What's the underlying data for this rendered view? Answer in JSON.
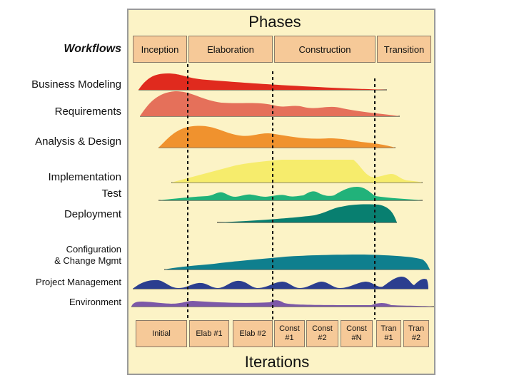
{
  "titles": {
    "phases": "Phases",
    "iterations": "Iterations"
  },
  "workflows_heading": "Workflows",
  "phases": [
    "Inception",
    "Elaboration",
    "Construction",
    "Transition"
  ],
  "workflows": [
    {
      "line1": "Business Modeling",
      "color": "#e02a1e"
    },
    {
      "line1": "Requirements",
      "color": "#e5705a"
    },
    {
      "line1": "Analysis & Design",
      "color": "#f0922e"
    },
    {
      "line1": "Implementation",
      "color": "#f6ec6c"
    },
    {
      "line1": "Test",
      "color": "#21b27a"
    },
    {
      "line1": "Deployment",
      "color": "#087f70"
    },
    {
      "line1": "Configuration",
      "line2": "& Change Mgmt",
      "color": "#0f7f8e"
    },
    {
      "line1": "Project Management",
      "color": "#2b3e8f"
    },
    {
      "line1": "Environment",
      "color": "#7c58a8"
    }
  ],
  "iterations": [
    {
      "line1": "Initial",
      "line2": ""
    },
    {
      "line1": "Elab #1",
      "line2": ""
    },
    {
      "line1": "Elab #2",
      "line2": ""
    },
    {
      "line1": "Const",
      "line2": "#1"
    },
    {
      "line1": "Const",
      "line2": "#2"
    },
    {
      "line1": "Const",
      "line2": "#N"
    },
    {
      "line1": "Tran",
      "line2": "#1"
    },
    {
      "line1": "Tran",
      "line2": "#2"
    }
  ]
}
